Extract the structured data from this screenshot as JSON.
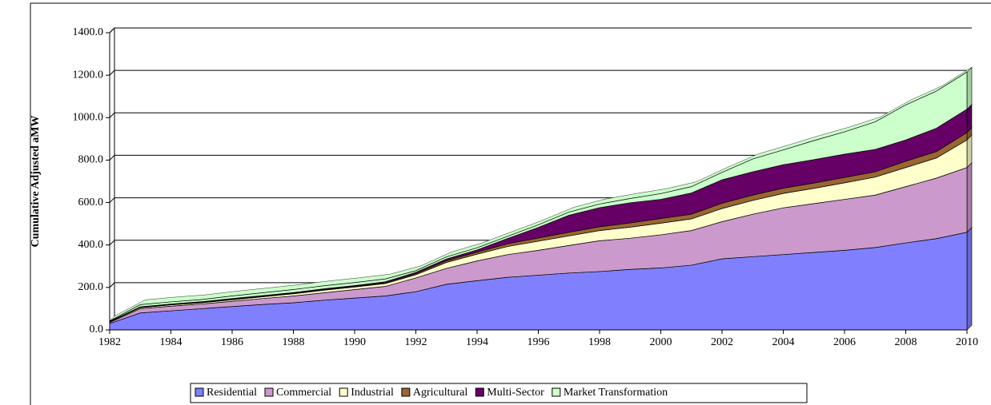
{
  "chart_data": {
    "type": "stacked_area",
    "y_label": "Cumulative Adjusted aMW",
    "x": [
      1982,
      1983,
      1984,
      1985,
      1986,
      1987,
      1988,
      1989,
      1990,
      1991,
      1992,
      1993,
      1994,
      1995,
      1996,
      1997,
      1998,
      1999,
      2000,
      2001,
      2002,
      2003,
      2004,
      2005,
      2006,
      2007,
      2008,
      2009,
      2010
    ],
    "xlim": [
      1982,
      2010
    ],
    "xticks": [
      1982,
      1984,
      1986,
      1988,
      1990,
      1992,
      1994,
      1996,
      1998,
      2000,
      2002,
      2004,
      2006,
      2008,
      2010
    ],
    "ylim": [
      0,
      1400
    ],
    "yticks": [
      {
        "value": 0,
        "label": "0.0"
      },
      {
        "value": 200,
        "label": "200.0"
      },
      {
        "value": 400,
        "label": "400.0"
      },
      {
        "value": 600,
        "label": "600.0"
      },
      {
        "value": 800,
        "label": "800.0"
      },
      {
        "value": 1000,
        "label": "1000.0"
      },
      {
        "value": 1200,
        "label": "1200.0"
      },
      {
        "value": 1400,
        "label": "1400.0"
      }
    ],
    "grid": true,
    "legend": "bottom",
    "series": [
      {
        "name": "Residential",
        "color": "#8080ff",
        "values": [
          30,
          80,
          90,
          100,
          110,
          120,
          128,
          140,
          150,
          160,
          180,
          215,
          232,
          248,
          258,
          268,
          275,
          285,
          292,
          305,
          335,
          345,
          355,
          365,
          375,
          388,
          410,
          430,
          460
        ]
      },
      {
        "name": "Commercial",
        "color": "#cc99cc",
        "values": [
          5,
          20,
          22,
          22,
          25,
          28,
          32,
          35,
          40,
          45,
          65,
          75,
          93,
          107,
          117,
          130,
          145,
          147,
          156,
          163,
          175,
          200,
          220,
          230,
          240,
          247,
          265,
          285,
          305
        ]
      },
      {
        "name": "Industrial",
        "color": "#ffffcc",
        "values": [
          3,
          5,
          6,
          6,
          7,
          8,
          10,
          12,
          12,
          13,
          15,
          28,
          32,
          38,
          43,
          45,
          48,
          52,
          55,
          55,
          62,
          65,
          68,
          72,
          78,
          85,
          90,
          95,
          130
        ]
      },
      {
        "name": "Agricultural",
        "color": "#996633",
        "values": [
          1,
          2,
          2,
          2,
          3,
          3,
          3,
          3,
          3,
          4,
          5,
          8,
          10,
          13,
          15,
          17,
          18,
          20,
          22,
          22,
          25,
          25,
          25,
          25,
          25,
          25,
          30,
          30,
          35
        ]
      },
      {
        "name": "Multi-Sector",
        "color": "#660066",
        "values": [
          1,
          2,
          2,
          3,
          3,
          3,
          3,
          4,
          4,
          5,
          6,
          8,
          10,
          25,
          50,
          80,
          90,
          95,
          90,
          100,
          110,
          110,
          110,
          110,
          110,
          105,
          100,
          110,
          110
        ]
      },
      {
        "name": "Market Transformation",
        "color": "#ccffcc",
        "values": [
          2,
          10,
          10,
          10,
          12,
          13,
          14,
          14,
          14,
          13,
          8,
          10,
          10,
          10,
          12,
          15,
          17,
          20,
          27,
          30,
          35,
          60,
          70,
          90,
          105,
          130,
          165,
          175,
          175
        ]
      }
    ]
  }
}
